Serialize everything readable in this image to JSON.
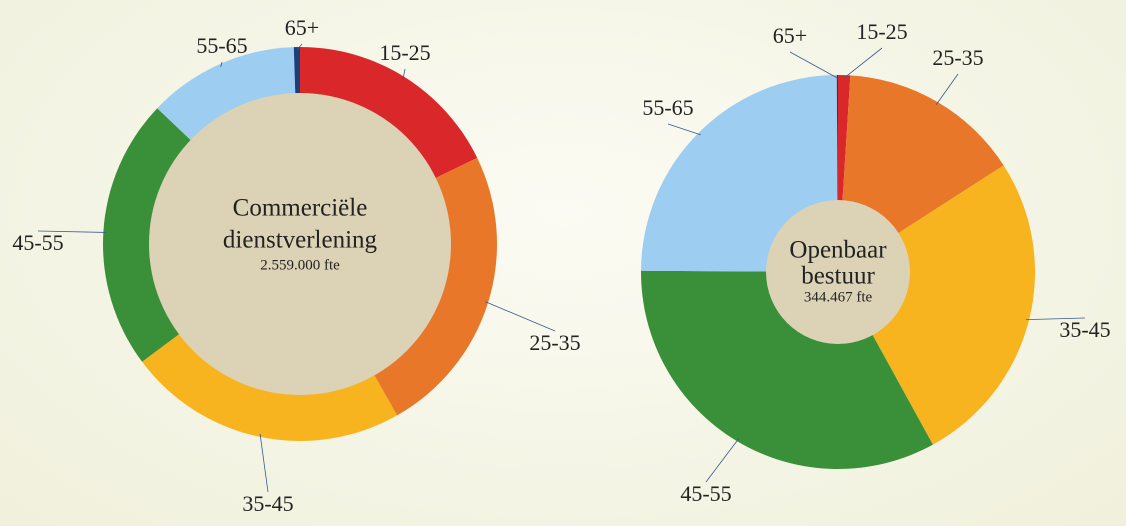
{
  "chart_data": [
    {
      "type": "donut",
      "center_label": [
        "Commerciële",
        "dienstverlening"
      ],
      "total": "2.559.000 fte",
      "categories": [
        "15-25",
        "25-35",
        "35-45",
        "45-55",
        "55-65",
        "65+"
      ],
      "values": [
        17.8,
        24,
        23,
        22.3,
        12.4,
        0.5
      ],
      "colors": [
        "#d9272a",
        "#e8772a",
        "#f8b41e",
        "#3a9038",
        "#9dcdf0",
        "#1c3f7a"
      ]
    },
    {
      "type": "donut",
      "center_label": [
        "Openbaar",
        "bestuur"
      ],
      "total": "344.467 fte",
      "categories": [
        "15-25",
        "25-35",
        "35-45",
        "45-55",
        "55-65",
        "65+"
      ],
      "values": [
        1,
        14.9,
        26.1,
        33.1,
        24.8,
        0.1
      ],
      "colors": [
        "#d9272a",
        "#e8772a",
        "#f8b41e",
        "#3a9038",
        "#9dcdf0",
        "#1c3f7a"
      ]
    }
  ]
}
